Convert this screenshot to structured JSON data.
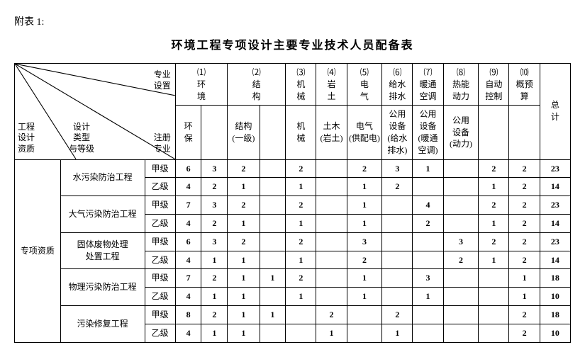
{
  "attach_label": "附表 1:",
  "title": "环境工程专项设计主要专业技术人员配备表",
  "diag": {
    "engineering": "工程",
    "design_qual": "设计",
    "qualification": "资质",
    "design": "设计",
    "type": "类型",
    "and_level": "与等级",
    "major_setup": "专业\n设置",
    "reg_major": "注册\n专业"
  },
  "columns": [
    {
      "idx": "⑴",
      "name": "环\n境",
      "reg": "环\n保",
      "reg2": ""
    },
    {
      "idx": "⑵",
      "name": "结\n构",
      "reg": "结构\n(一级)",
      "reg2": ""
    },
    {
      "idx": "⑶",
      "name": "机\n械",
      "reg": "机\n械"
    },
    {
      "idx": "⑷",
      "name": "岩\n土",
      "reg": "土木\n(岩土)"
    },
    {
      "idx": "⑸",
      "name": "电\n气",
      "reg": "电气\n(供配电)"
    },
    {
      "idx": "⑹",
      "name": "给水\n排水",
      "reg": "公用\n设备\n(给水\n排水)"
    },
    {
      "idx": "⑺",
      "name": "暖通\n空调",
      "reg": "公用\n设备\n(暖通\n空调)"
    },
    {
      "idx": "⑻",
      "name": "热能\n动力",
      "reg": "公用\n设备\n(动力)"
    },
    {
      "idx": "⑼",
      "name": "自动\n控制",
      "reg": ""
    },
    {
      "idx": "⑽",
      "name": "概预\n算",
      "reg": ""
    }
  ],
  "total_label": "总\n计",
  "qual_category": "专项资质",
  "projects": [
    {
      "name": "水污染防治工程",
      "rows": [
        {
          "level": "甲级",
          "v": [
            "6",
            "3",
            "2",
            "",
            "2",
            "",
            "2",
            "3",
            "1",
            "",
            "2",
            "2",
            "23"
          ]
        },
        {
          "level": "乙级",
          "v": [
            "4",
            "2",
            "1",
            "",
            "1",
            "",
            "1",
            "2",
            "",
            "",
            "1",
            "2",
            "14"
          ]
        }
      ]
    },
    {
      "name": "大气污染防治工程",
      "rows": [
        {
          "level": "甲级",
          "v": [
            "7",
            "3",
            "2",
            "",
            "2",
            "",
            "1",
            "",
            "4",
            "",
            "2",
            "2",
            "23"
          ]
        },
        {
          "level": "乙级",
          "v": [
            "4",
            "2",
            "1",
            "",
            "1",
            "",
            "1",
            "",
            "2",
            "",
            "1",
            "2",
            "14"
          ]
        }
      ]
    },
    {
      "name": "固体废物处理\n处置工程",
      "rows": [
        {
          "level": "甲级",
          "v": [
            "6",
            "3",
            "2",
            "",
            "2",
            "",
            "3",
            "",
            "",
            "3",
            "2",
            "2",
            "23"
          ]
        },
        {
          "level": "乙级",
          "v": [
            "4",
            "1",
            "1",
            "",
            "1",
            "",
            "2",
            "",
            "",
            "2",
            "1",
            "2",
            "14"
          ]
        }
      ]
    },
    {
      "name": "物理污染防治工程",
      "rows": [
        {
          "level": "甲级",
          "v": [
            "7",
            "2",
            "1",
            "1",
            "2",
            "",
            "1",
            "",
            "3",
            "",
            "",
            "1",
            "18"
          ]
        },
        {
          "level": "乙级",
          "v": [
            "4",
            "1",
            "1",
            "",
            "1",
            "",
            "1",
            "",
            "1",
            "",
            "",
            "1",
            "10"
          ]
        }
      ]
    },
    {
      "name": "污染修复工程",
      "rows": [
        {
          "level": "甲级",
          "v": [
            "8",
            "2",
            "1",
            "1",
            "",
            "2",
            "",
            "2",
            "",
            "",
            "",
            "2",
            "18"
          ]
        },
        {
          "level": "乙级",
          "v": [
            "4",
            "1",
            "1",
            "",
            "",
            "1",
            "",
            "1",
            "",
            "",
            "",
            "2",
            "10"
          ]
        }
      ]
    }
  ]
}
